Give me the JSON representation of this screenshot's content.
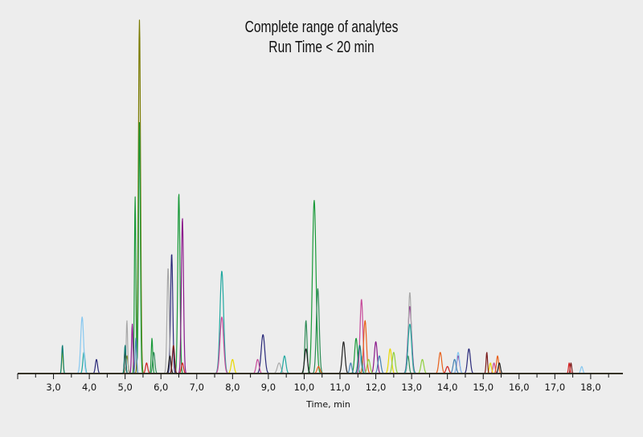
{
  "chart_data": {
    "type": "line",
    "title": [
      "Complete range of analytes",
      "Run Time < 20 min"
    ],
    "xlabel": "Time, min",
    "ylabel": "",
    "xlim": [
      2.0,
      18.9
    ],
    "ylim": [
      0,
      1
    ],
    "x_ticks": [
      "3,0",
      "4,0",
      "5,0",
      "6,0",
      "7,0",
      "8,0",
      "9,0",
      "10,0",
      "11,0",
      "12,0",
      "13,0",
      "14,0",
      "15,0",
      "16,0",
      "17,0",
      "18,0"
    ],
    "grid": false,
    "legend": "none",
    "y_axis_visible": false,
    "series": [
      {
        "color": "#7a7a00",
        "peaks": [
          [
            5.4,
            1.0,
            0.03
          ],
          [
            5.05,
            0.05,
            0.03
          ]
        ]
      },
      {
        "color": "#1a9a3a",
        "peaks": [
          [
            5.4,
            0.71,
            0.025
          ],
          [
            5.28,
            0.5,
            0.02
          ],
          [
            6.5,
            0.51,
            0.03
          ],
          [
            10.28,
            0.49,
            0.05
          ],
          [
            5.0,
            0.07,
            0.02
          ],
          [
            5.75,
            0.1,
            0.02
          ],
          [
            11.45,
            0.1,
            0.04
          ]
        ]
      },
      {
        "color": "#2e8b57",
        "peaks": [
          [
            10.38,
            0.24,
            0.04
          ],
          [
            10.05,
            0.15,
            0.03
          ],
          [
            5.8,
            0.06,
            0.03
          ],
          [
            12.9,
            0.05,
            0.03
          ]
        ]
      },
      {
        "color": "#8b1a8b",
        "peaks": [
          [
            6.6,
            0.44,
            0.03
          ],
          [
            12.95,
            0.19,
            0.05
          ],
          [
            5.2,
            0.14,
            0.02
          ],
          [
            12.0,
            0.09,
            0.04
          ],
          [
            14.3,
            0.05,
            0.04
          ]
        ]
      },
      {
        "color": "#2a2a7a",
        "peaks": [
          [
            6.3,
            0.34,
            0.03
          ],
          [
            8.85,
            0.11,
            0.05
          ],
          [
            4.2,
            0.04,
            0.03
          ],
          [
            14.6,
            0.07,
            0.04
          ]
        ]
      },
      {
        "color": "#a9a9a9",
        "peaks": [
          [
            6.2,
            0.3,
            0.03
          ],
          [
            5.05,
            0.15,
            0.02
          ],
          [
            12.95,
            0.23,
            0.04
          ],
          [
            9.3,
            0.03,
            0.05
          ]
        ]
      },
      {
        "color": "#20a8a0",
        "peaks": [
          [
            7.7,
            0.29,
            0.05
          ],
          [
            12.95,
            0.14,
            0.05
          ],
          [
            3.85,
            0.06,
            0.03
          ],
          [
            9.45,
            0.05,
            0.04
          ]
        ]
      },
      {
        "color": "#87c8f0",
        "peaks": [
          [
            3.8,
            0.16,
            0.04
          ],
          [
            14.3,
            0.06,
            0.04
          ],
          [
            11.6,
            0.05,
            0.04
          ],
          [
            17.75,
            0.02,
            0.03
          ]
        ]
      },
      {
        "color": "#c74a9a",
        "peaks": [
          [
            7.7,
            0.16,
            0.05
          ],
          [
            11.6,
            0.21,
            0.04
          ],
          [
            8.7,
            0.04,
            0.04
          ],
          [
            15.3,
            0.03,
            0.03
          ]
        ]
      },
      {
        "color": "#e8601a",
        "peaks": [
          [
            11.7,
            0.15,
            0.04
          ],
          [
            13.8,
            0.06,
            0.04
          ],
          [
            15.4,
            0.05,
            0.03
          ],
          [
            10.4,
            0.02,
            0.04
          ]
        ]
      },
      {
        "color": "#222222",
        "peaks": [
          [
            11.1,
            0.09,
            0.04
          ],
          [
            10.05,
            0.07,
            0.04
          ],
          [
            15.45,
            0.03,
            0.03
          ],
          [
            6.25,
            0.05,
            0.03
          ]
        ]
      },
      {
        "color": "#e8d800",
        "peaks": [
          [
            3.25,
            0.06,
            0.02
          ],
          [
            12.4,
            0.07,
            0.04
          ],
          [
            8.0,
            0.04,
            0.04
          ],
          [
            15.2,
            0.03,
            0.03
          ]
        ]
      },
      {
        "color": "#4682b4",
        "peaks": [
          [
            5.3,
            0.1,
            0.02
          ],
          [
            12.1,
            0.05,
            0.04
          ],
          [
            14.2,
            0.04,
            0.04
          ],
          [
            11.3,
            0.03,
            0.03
          ]
        ]
      },
      {
        "color": "#7a1a1a",
        "peaks": [
          [
            5.0,
            0.06,
            0.02
          ],
          [
            6.35,
            0.08,
            0.03
          ],
          [
            17.45,
            0.03,
            0.02
          ],
          [
            15.1,
            0.06,
            0.02
          ]
        ]
      },
      {
        "color": "#90d040",
        "peaks": [
          [
            12.5,
            0.06,
            0.04
          ],
          [
            13.3,
            0.04,
            0.04
          ],
          [
            11.8,
            0.04,
            0.04
          ]
        ]
      },
      {
        "color": "#d02020",
        "peaks": [
          [
            5.6,
            0.03,
            0.03
          ],
          [
            6.6,
            0.03,
            0.03
          ],
          [
            14.0,
            0.02,
            0.04
          ],
          [
            17.4,
            0.03,
            0.02
          ]
        ]
      },
      {
        "color": "#0b7a72",
        "peaks": [
          [
            3.25,
            0.08,
            0.02
          ],
          [
            5.0,
            0.08,
            0.02
          ],
          [
            11.55,
            0.08,
            0.04
          ]
        ]
      }
    ]
  }
}
